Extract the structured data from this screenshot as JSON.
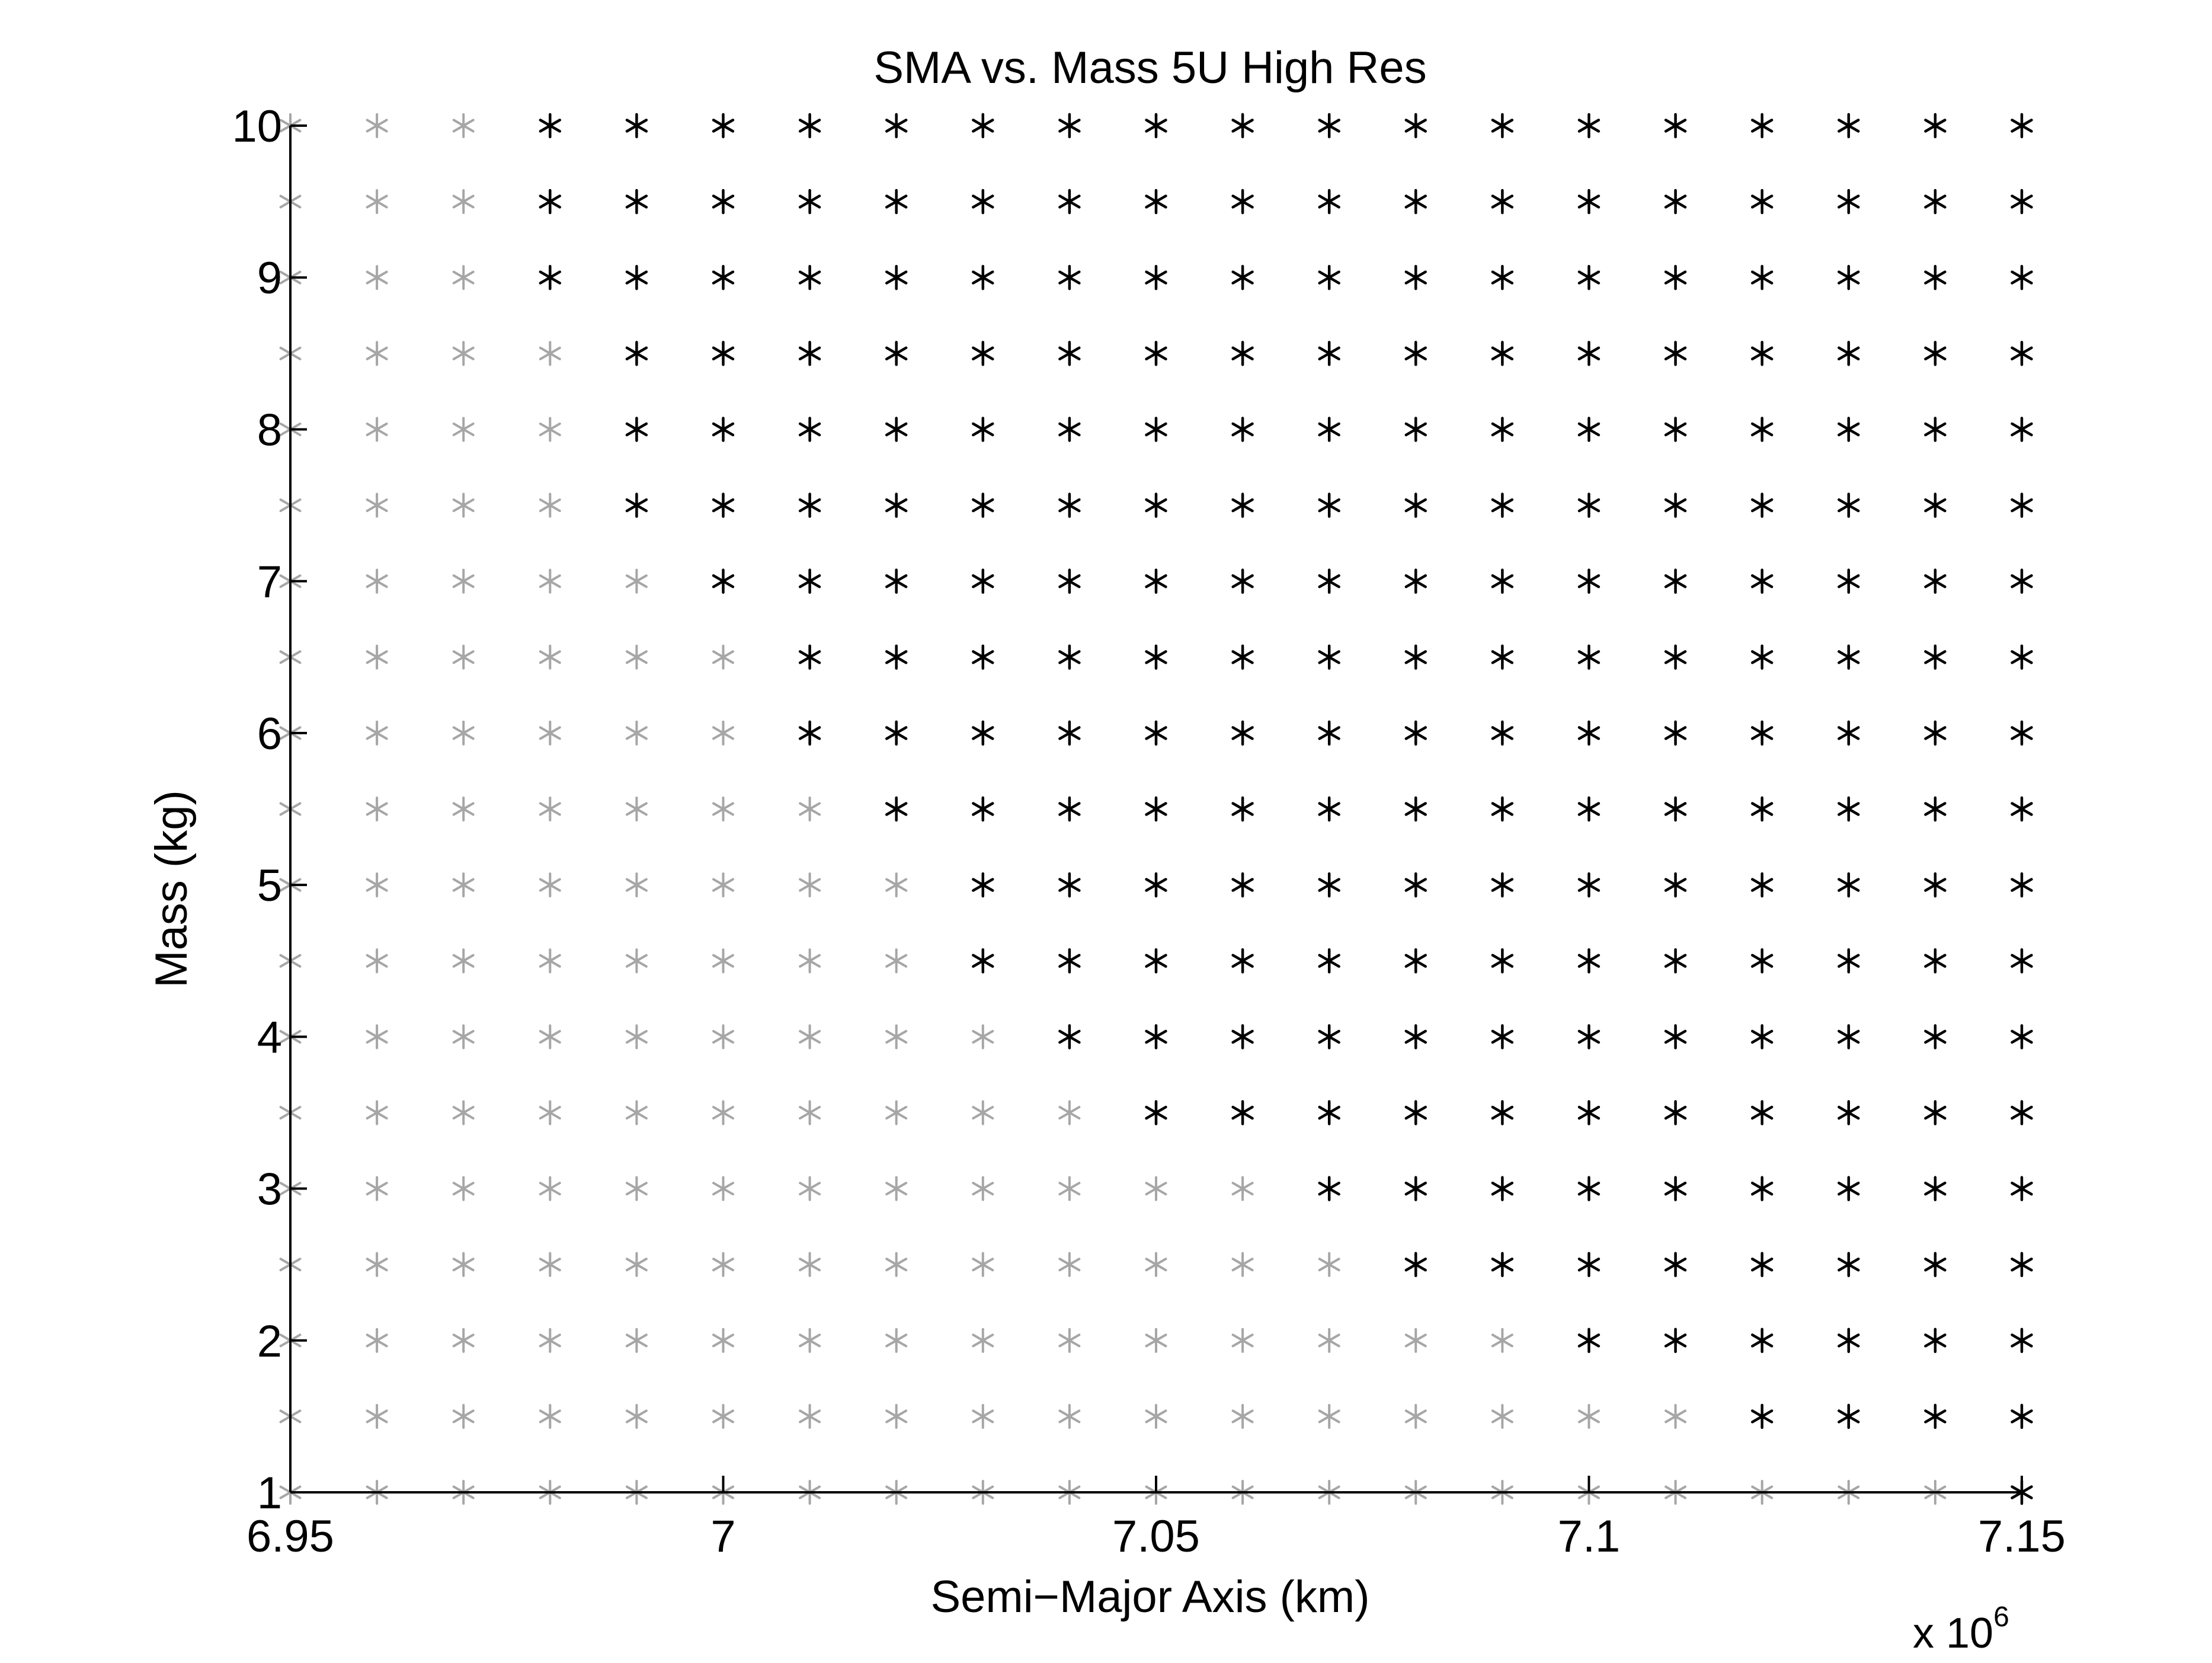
{
  "chart_data": {
    "type": "scatter",
    "title": "SMA vs. Mass 5U High Res",
    "xlabel": "Semi−Major Axis (km)",
    "ylabel": "Mass (kg)",
    "x_exponent_prefix": "x 10",
    "x_exponent": "6",
    "xlim": [
      6.95,
      7.15
    ],
    "ylim": [
      1,
      10
    ],
    "x_ticks": [
      6.95,
      7.0,
      7.05,
      7.1,
      7.15
    ],
    "x_tick_labels": [
      "6.95",
      "7",
      "7.05",
      "7.1",
      "7.15"
    ],
    "y_ticks": [
      1,
      2,
      3,
      4,
      5,
      6,
      7,
      8,
      9,
      10
    ],
    "y_tick_labels": [
      "1",
      "2",
      "3",
      "4",
      "5",
      "6",
      "7",
      "8",
      "9",
      "10"
    ],
    "grid": false,
    "marker": "asterisk",
    "grid_x": [
      6.95,
      6.96,
      6.97,
      6.98,
      6.99,
      7.0,
      7.01,
      7.02,
      7.03,
      7.04,
      7.05,
      7.06,
      7.07,
      7.08,
      7.09,
      7.1,
      7.11,
      7.12,
      7.13,
      7.14,
      7.15
    ],
    "grid_y": [
      1,
      1.5,
      2,
      2.5,
      3,
      3.5,
      4,
      4.5,
      5,
      5.5,
      6,
      6.5,
      7,
      7.5,
      8,
      8.5,
      9,
      9.5,
      10
    ],
    "boundary_description": "For each mass, points with SMA >= threshold are black; lower SMA points are gray",
    "black_threshold_sma": [
      {
        "mass": 1,
        "min_sma": 7.15
      },
      {
        "mass": 1.5,
        "min_sma": 7.12
      },
      {
        "mass": 2,
        "min_sma": 7.1
      },
      {
        "mass": 2.5,
        "min_sma": 7.08
      },
      {
        "mass": 3,
        "min_sma": 7.07
      },
      {
        "mass": 3.5,
        "min_sma": 7.05
      },
      {
        "mass": 4,
        "min_sma": 7.04
      },
      {
        "mass": 4.5,
        "min_sma": 7.03
      },
      {
        "mass": 5,
        "min_sma": 7.03
      },
      {
        "mass": 5.5,
        "min_sma": 7.02
      },
      {
        "mass": 6,
        "min_sma": 7.01
      },
      {
        "mass": 6.5,
        "min_sma": 7.01
      },
      {
        "mass": 7,
        "min_sma": 7.0
      },
      {
        "mass": 7.5,
        "min_sma": 6.99
      },
      {
        "mass": 8,
        "min_sma": 6.99
      },
      {
        "mass": 8.5,
        "min_sma": 6.99
      },
      {
        "mass": 9,
        "min_sma": 6.98
      },
      {
        "mass": 9.5,
        "min_sma": 6.98
      },
      {
        "mass": 10,
        "min_sma": 6.98
      }
    ],
    "colors": {
      "black": "#000000",
      "gray": "#a6a6a6",
      "axis": "#000000"
    }
  }
}
